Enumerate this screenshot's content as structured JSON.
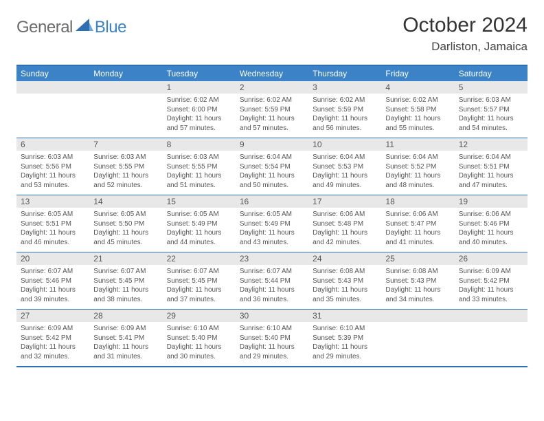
{
  "logo": {
    "text1": "General",
    "text2": "Blue"
  },
  "title": "October 2024",
  "location": "Darliston, Jamaica",
  "colors": {
    "header_bg": "#3b82c7",
    "border": "#2d6fb0",
    "daynum_bg": "#e8e8e8",
    "text": "#555555",
    "logo_gray": "#6b6b6b"
  },
  "day_names": [
    "Sunday",
    "Monday",
    "Tuesday",
    "Wednesday",
    "Thursday",
    "Friday",
    "Saturday"
  ],
  "weeks": [
    [
      null,
      null,
      {
        "n": "1",
        "sr": "6:02 AM",
        "ss": "6:00 PM",
        "dl": "11 hours and 57 minutes."
      },
      {
        "n": "2",
        "sr": "6:02 AM",
        "ss": "5:59 PM",
        "dl": "11 hours and 57 minutes."
      },
      {
        "n": "3",
        "sr": "6:02 AM",
        "ss": "5:59 PM",
        "dl": "11 hours and 56 minutes."
      },
      {
        "n": "4",
        "sr": "6:02 AM",
        "ss": "5:58 PM",
        "dl": "11 hours and 55 minutes."
      },
      {
        "n": "5",
        "sr": "6:03 AM",
        "ss": "5:57 PM",
        "dl": "11 hours and 54 minutes."
      }
    ],
    [
      {
        "n": "6",
        "sr": "6:03 AM",
        "ss": "5:56 PM",
        "dl": "11 hours and 53 minutes."
      },
      {
        "n": "7",
        "sr": "6:03 AM",
        "ss": "5:55 PM",
        "dl": "11 hours and 52 minutes."
      },
      {
        "n": "8",
        "sr": "6:03 AM",
        "ss": "5:55 PM",
        "dl": "11 hours and 51 minutes."
      },
      {
        "n": "9",
        "sr": "6:04 AM",
        "ss": "5:54 PM",
        "dl": "11 hours and 50 minutes."
      },
      {
        "n": "10",
        "sr": "6:04 AM",
        "ss": "5:53 PM",
        "dl": "11 hours and 49 minutes."
      },
      {
        "n": "11",
        "sr": "6:04 AM",
        "ss": "5:52 PM",
        "dl": "11 hours and 48 minutes."
      },
      {
        "n": "12",
        "sr": "6:04 AM",
        "ss": "5:51 PM",
        "dl": "11 hours and 47 minutes."
      }
    ],
    [
      {
        "n": "13",
        "sr": "6:05 AM",
        "ss": "5:51 PM",
        "dl": "11 hours and 46 minutes."
      },
      {
        "n": "14",
        "sr": "6:05 AM",
        "ss": "5:50 PM",
        "dl": "11 hours and 45 minutes."
      },
      {
        "n": "15",
        "sr": "6:05 AM",
        "ss": "5:49 PM",
        "dl": "11 hours and 44 minutes."
      },
      {
        "n": "16",
        "sr": "6:05 AM",
        "ss": "5:49 PM",
        "dl": "11 hours and 43 minutes."
      },
      {
        "n": "17",
        "sr": "6:06 AM",
        "ss": "5:48 PM",
        "dl": "11 hours and 42 minutes."
      },
      {
        "n": "18",
        "sr": "6:06 AM",
        "ss": "5:47 PM",
        "dl": "11 hours and 41 minutes."
      },
      {
        "n": "19",
        "sr": "6:06 AM",
        "ss": "5:46 PM",
        "dl": "11 hours and 40 minutes."
      }
    ],
    [
      {
        "n": "20",
        "sr": "6:07 AM",
        "ss": "5:46 PM",
        "dl": "11 hours and 39 minutes."
      },
      {
        "n": "21",
        "sr": "6:07 AM",
        "ss": "5:45 PM",
        "dl": "11 hours and 38 minutes."
      },
      {
        "n": "22",
        "sr": "6:07 AM",
        "ss": "5:45 PM",
        "dl": "11 hours and 37 minutes."
      },
      {
        "n": "23",
        "sr": "6:07 AM",
        "ss": "5:44 PM",
        "dl": "11 hours and 36 minutes."
      },
      {
        "n": "24",
        "sr": "6:08 AM",
        "ss": "5:43 PM",
        "dl": "11 hours and 35 minutes."
      },
      {
        "n": "25",
        "sr": "6:08 AM",
        "ss": "5:43 PM",
        "dl": "11 hours and 34 minutes."
      },
      {
        "n": "26",
        "sr": "6:09 AM",
        "ss": "5:42 PM",
        "dl": "11 hours and 33 minutes."
      }
    ],
    [
      {
        "n": "27",
        "sr": "6:09 AM",
        "ss": "5:42 PM",
        "dl": "11 hours and 32 minutes."
      },
      {
        "n": "28",
        "sr": "6:09 AM",
        "ss": "5:41 PM",
        "dl": "11 hours and 31 minutes."
      },
      {
        "n": "29",
        "sr": "6:10 AM",
        "ss": "5:40 PM",
        "dl": "11 hours and 30 minutes."
      },
      {
        "n": "30",
        "sr": "6:10 AM",
        "ss": "5:40 PM",
        "dl": "11 hours and 29 minutes."
      },
      {
        "n": "31",
        "sr": "6:10 AM",
        "ss": "5:39 PM",
        "dl": "11 hours and 29 minutes."
      },
      null,
      null
    ]
  ],
  "labels": {
    "sunrise": "Sunrise:",
    "sunset": "Sunset:",
    "daylight": "Daylight:"
  }
}
